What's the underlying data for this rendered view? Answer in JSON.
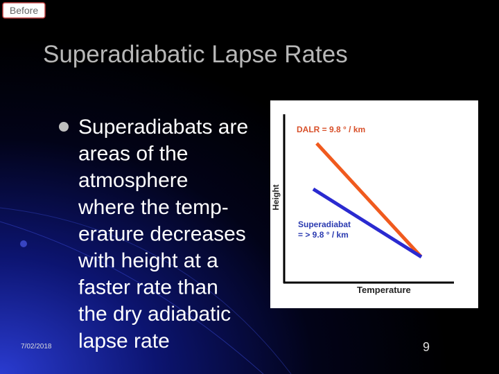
{
  "badge": "Before",
  "title": "Superadiabatic Lapse Rates",
  "bullet": {
    "lines": [
      "Superadiabats are",
      "areas of the",
      "atmosphere",
      "where the temp-",
      "erature decreases",
      "with height at a",
      "faster rate than",
      "the dry adiabatic",
      "lapse rate"
    ]
  },
  "diagram": {
    "dalr_label": "DALR = 9.8 ° / km",
    "superadiabat_label": [
      "Superadiabat",
      "= > 9.8 ° / km"
    ],
    "x_axis_label": "Temperature",
    "y_axis_label": "Height"
  },
  "footer": {
    "date": "7/02/2018",
    "page_number": "9"
  }
}
